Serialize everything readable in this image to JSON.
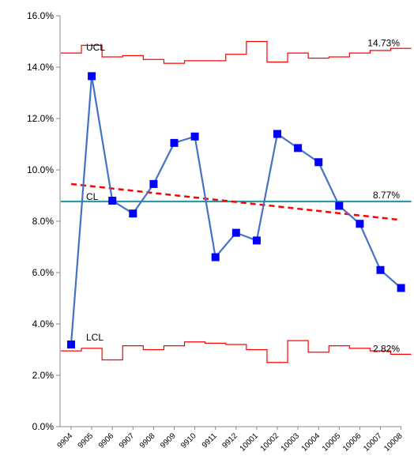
{
  "chart_data": {
    "type": "line",
    "title": "",
    "xlabel": "",
    "ylabel": "",
    "ylim": [
      0,
      16
    ],
    "y_ticks": [
      "0.0%",
      "2.0%",
      "4.0%",
      "6.0%",
      "8.0%",
      "10.0%",
      "12.0%",
      "14.0%",
      "16.0%"
    ],
    "categories": [
      "9904",
      "9905",
      "9906",
      "9907",
      "9908",
      "9909",
      "9910",
      "9911",
      "9912",
      "10001",
      "10002",
      "10003",
      "10004",
      "10005",
      "10006",
      "10007",
      "10008"
    ],
    "series": [
      {
        "values": [
          3.2,
          13.65,
          8.8,
          8.3,
          9.45,
          11.05,
          11.3,
          6.6,
          7.55,
          7.25,
          11.4,
          10.85,
          10.3,
          8.6,
          7.9,
          6.1,
          5.4
        ],
        "color": "#4472C4",
        "marker_color": "#0000FF"
      }
    ],
    "center_line": {
      "label": "CL",
      "value": 8.77,
      "value_label": "8.77%",
      "color": "#2E9AA6"
    },
    "ucl": {
      "label": "UCL",
      "value_label": "14.73%",
      "color": "#FF0000",
      "values": [
        14.55,
        14.85,
        14.4,
        14.45,
        14.3,
        14.15,
        14.25,
        14.25,
        14.5,
        15.0,
        14.2,
        14.55,
        14.35,
        14.4,
        14.55,
        14.65,
        14.73
      ]
    },
    "lcl": {
      "label": "LCL",
      "value_label": "2.82%",
      "color": "#FF0000",
      "values": [
        2.95,
        3.05,
        2.6,
        3.15,
        3.0,
        3.15,
        3.3,
        3.25,
        3.2,
        3.0,
        2.5,
        3.35,
        2.9,
        3.15,
        3.05,
        2.95,
        2.82
      ]
    },
    "trendline": {
      "start": 9.45,
      "end": 8.05,
      "color": "#FF0000",
      "style": "dashed"
    },
    "grid": false,
    "legend": "none"
  }
}
